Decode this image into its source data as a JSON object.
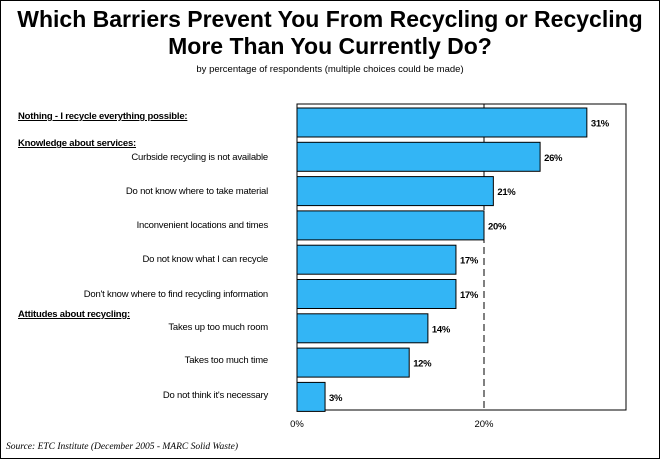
{
  "title": "Which Barriers Prevent You From Recycling or Recycling More Than You Currently Do?",
  "subtitle": "by percentage of respondents (multiple choices could be made)",
  "source": "Source:  ETC Institute (December 2005 - MARC Solid Waste)",
  "sections": {
    "nothing": "Nothing - I recycle everything possible:",
    "knowledge": "Knowledge about services:",
    "attitudes": "Attitudes about recycling:"
  },
  "chart_data": {
    "type": "bar",
    "orientation": "horizontal",
    "categories": [
      "Nothing - I recycle everything possible:",
      "Curbside recycling is not available",
      "Do not know where to take material",
      "Inconvenient locations and times",
      "Do not know what I can recycle",
      "Don't know where to find recycling information",
      "Takes up too much room",
      "Takes too much time",
      "Do not think it's necessary"
    ],
    "values": [
      31,
      26,
      21,
      20,
      17,
      17,
      14,
      12,
      3
    ],
    "value_labels": [
      "31%",
      "26%",
      "21%",
      "20%",
      "17%",
      "17%",
      "14%",
      "12%",
      "3%"
    ],
    "xlim": [
      0,
      35
    ],
    "xticks": [
      0,
      20
    ],
    "xtick_labels": [
      "0%",
      "20%"
    ],
    "reference_line": 20,
    "bar_color": "#33b5f5",
    "grid": false
  }
}
